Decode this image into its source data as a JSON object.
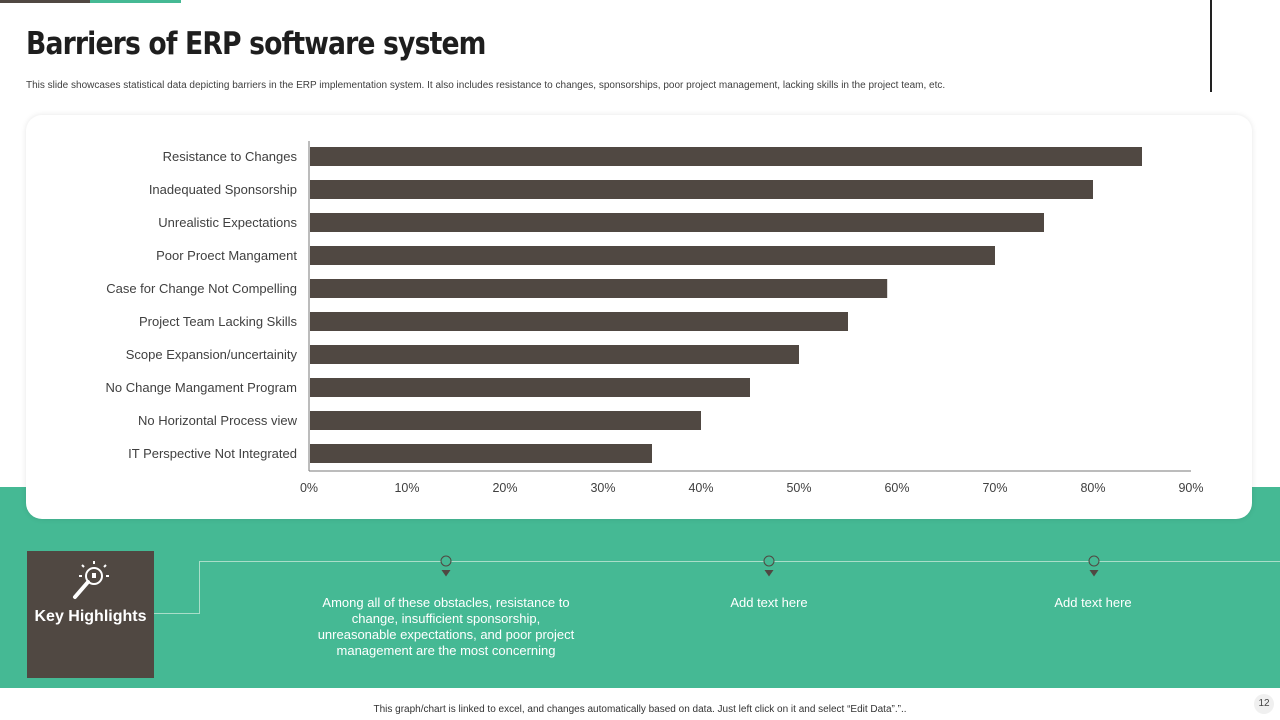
{
  "slide": {
    "title": "Barriers of ERP software system",
    "subtitle": "This slide showcases statistical data depicting barriers in the ERP  implementation  system. It also includes resistance to changes, sponsorships, poor project management, lacking skills in the project team, etc.",
    "footer_note": "This graph/chart is linked to excel, and changes automatically based on data. Just left click on it and select “Edit Data”.”..",
    "page_number": "12"
  },
  "colors": {
    "accent_green": "#45b994",
    "dark_brown": "#504842",
    "bar_color": "#504842"
  },
  "chart_data": {
    "type": "bar",
    "orientation": "horizontal",
    "categories": [
      "Resistance to Changes",
      "Inadequated Sponsorship",
      "Unrealistic Expectations",
      "Poor Proect Mangament",
      "Case for Change Not Compelling",
      "Project Team Lacking Skills",
      "Scope Expansion/uncertainity",
      "No Change Mangament Program",
      "No Horizontal Process view",
      "IT Perspective Not Integrated"
    ],
    "values": [
      0.85,
      0.8,
      0.75,
      0.7,
      0.59,
      0.55,
      0.5,
      0.45,
      0.4,
      0.35
    ],
    "xlim": [
      0,
      0.9
    ],
    "ticks": [
      0,
      0.1,
      0.2,
      0.3,
      0.4,
      0.5,
      0.6,
      0.7,
      0.8,
      0.9
    ],
    "tick_labels": [
      "0%",
      "10%",
      "20%",
      "30%",
      "40%",
      "50%",
      "60%",
      "70%",
      "80%",
      "90%"
    ],
    "grid": false
  },
  "key_highlights": {
    "label": "Key Highlights",
    "icon": "lightbulb-magnifier-icon",
    "items": [
      {
        "text": "Among all of these obstacles, resistance to change, insufficient sponsorship, unreasonable  expectations, and poor project management  are the most concerning"
      },
      {
        "text": "Add text here"
      },
      {
        "text": "Add text here"
      }
    ]
  }
}
